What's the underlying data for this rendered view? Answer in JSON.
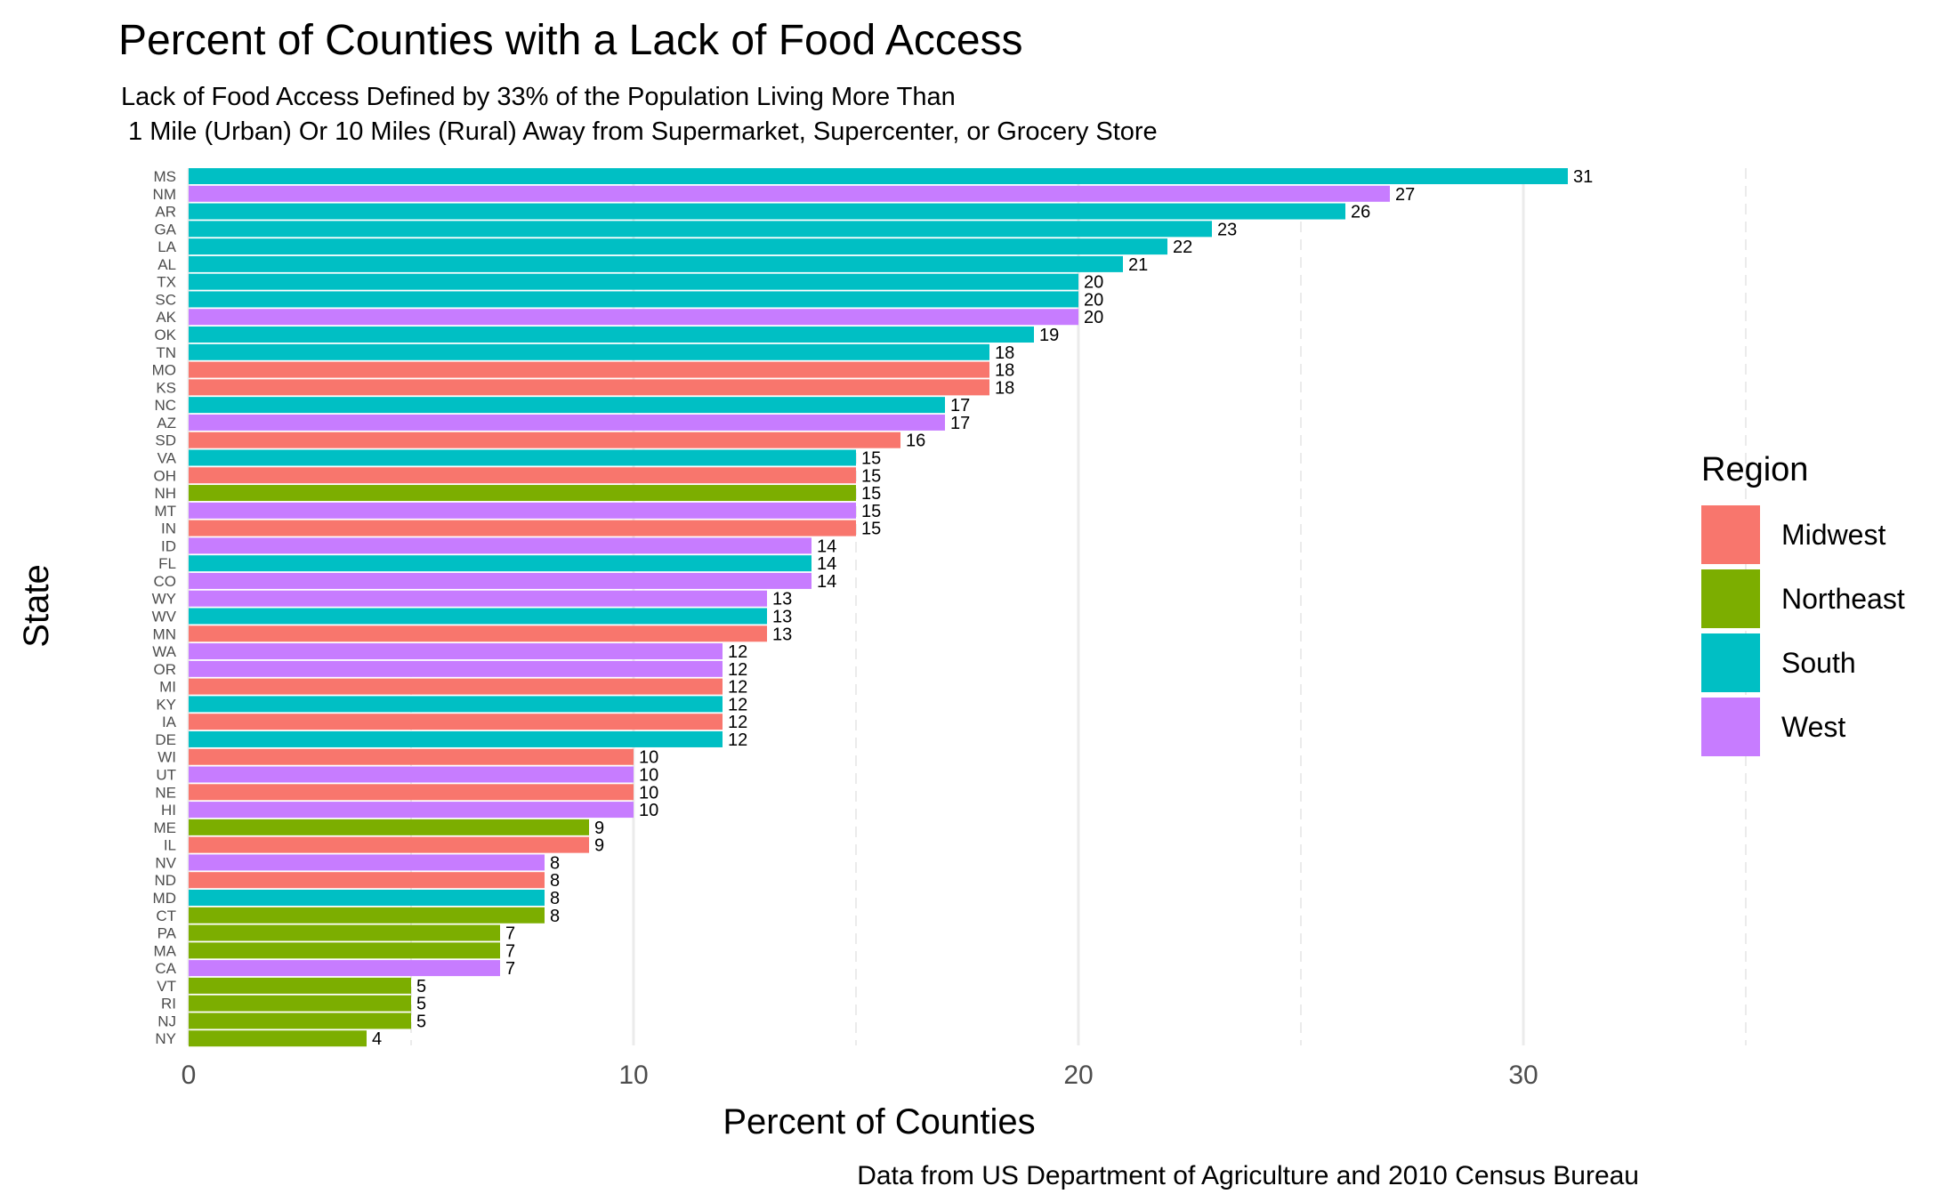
{
  "chart_data": {
    "type": "bar",
    "orientation": "horizontal",
    "title": "Percent of Counties with a Lack of Food Access",
    "subtitle_lines": [
      "Lack of Food Access Defined by 33% of the Population Living More Than",
      " 1 Mile (Urban) Or 10 Miles (Rural) Away from Supermarket, Supercenter, or Grocery Store"
    ],
    "xlabel": "Percent of Counties",
    "ylabel": "State",
    "caption": "Data from US Department of Agriculture and 2010 Census Bureau",
    "xlim": [
      0,
      35
    ],
    "xticks": [
      0,
      10,
      20,
      30
    ],
    "grid": true,
    "legend": {
      "title": "Region",
      "placement": "right",
      "entries": [
        {
          "name": "Midwest",
          "color": "#F8766D"
        },
        {
          "name": "Northeast",
          "color": "#7CAE00"
        },
        {
          "name": "South",
          "color": "#00BFC4"
        },
        {
          "name": "West",
          "color": "#C77CFF"
        }
      ]
    },
    "bars": [
      {
        "state": "MS",
        "value": 31,
        "region": "South"
      },
      {
        "state": "NM",
        "value": 27,
        "region": "West"
      },
      {
        "state": "AR",
        "value": 26,
        "region": "South"
      },
      {
        "state": "GA",
        "value": 23,
        "region": "South"
      },
      {
        "state": "LA",
        "value": 22,
        "region": "South"
      },
      {
        "state": "AL",
        "value": 21,
        "region": "South"
      },
      {
        "state": "TX",
        "value": 20,
        "region": "South"
      },
      {
        "state": "SC",
        "value": 20,
        "region": "South"
      },
      {
        "state": "AK",
        "value": 20,
        "region": "West"
      },
      {
        "state": "OK",
        "value": 19,
        "region": "South"
      },
      {
        "state": "TN",
        "value": 18,
        "region": "South"
      },
      {
        "state": "MO",
        "value": 18,
        "region": "Midwest"
      },
      {
        "state": "KS",
        "value": 18,
        "region": "Midwest"
      },
      {
        "state": "NC",
        "value": 17,
        "region": "South"
      },
      {
        "state": "AZ",
        "value": 17,
        "region": "West"
      },
      {
        "state": "SD",
        "value": 16,
        "region": "Midwest"
      },
      {
        "state": "VA",
        "value": 15,
        "region": "South"
      },
      {
        "state": "OH",
        "value": 15,
        "region": "Midwest"
      },
      {
        "state": "NH",
        "value": 15,
        "region": "Northeast"
      },
      {
        "state": "MT",
        "value": 15,
        "region": "West"
      },
      {
        "state": "IN",
        "value": 15,
        "region": "Midwest"
      },
      {
        "state": "ID",
        "value": 14,
        "region": "West"
      },
      {
        "state": "FL",
        "value": 14,
        "region": "South"
      },
      {
        "state": "CO",
        "value": 14,
        "region": "West"
      },
      {
        "state": "WY",
        "value": 13,
        "region": "West"
      },
      {
        "state": "WV",
        "value": 13,
        "region": "South"
      },
      {
        "state": "MN",
        "value": 13,
        "region": "Midwest"
      },
      {
        "state": "WA",
        "value": 12,
        "region": "West"
      },
      {
        "state": "OR",
        "value": 12,
        "region": "West"
      },
      {
        "state": "MI",
        "value": 12,
        "region": "Midwest"
      },
      {
        "state": "KY",
        "value": 12,
        "region": "South"
      },
      {
        "state": "IA",
        "value": 12,
        "region": "Midwest"
      },
      {
        "state": "DE",
        "value": 12,
        "region": "South"
      },
      {
        "state": "WI",
        "value": 10,
        "region": "Midwest"
      },
      {
        "state": "UT",
        "value": 10,
        "region": "West"
      },
      {
        "state": "NE",
        "value": 10,
        "region": "Midwest"
      },
      {
        "state": "HI",
        "value": 10,
        "region": "West"
      },
      {
        "state": "ME",
        "value": 9,
        "region": "Northeast"
      },
      {
        "state": "IL",
        "value": 9,
        "region": "Midwest"
      },
      {
        "state": "NV",
        "value": 8,
        "region": "West"
      },
      {
        "state": "ND",
        "value": 8,
        "region": "Midwest"
      },
      {
        "state": "MD",
        "value": 8,
        "region": "South"
      },
      {
        "state": "CT",
        "value": 8,
        "region": "Northeast"
      },
      {
        "state": "PA",
        "value": 7,
        "region": "Northeast"
      },
      {
        "state": "MA",
        "value": 7,
        "region": "Northeast"
      },
      {
        "state": "CA",
        "value": 7,
        "region": "West"
      },
      {
        "state": "VT",
        "value": 5,
        "region": "Northeast"
      },
      {
        "state": "RI",
        "value": 5,
        "region": "Northeast"
      },
      {
        "state": "NJ",
        "value": 5,
        "region": "Northeast"
      },
      {
        "state": "NY",
        "value": 4,
        "region": "Northeast"
      }
    ]
  }
}
